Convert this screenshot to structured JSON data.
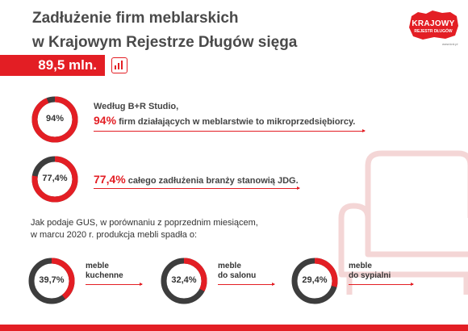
{
  "header": {
    "title_line1": "Zadłużenie firm meblarskich",
    "title_line2": "w Krajowym Rejestrze Długów sięga",
    "amount": "89,5 mln."
  },
  "logo": {
    "line1": "KRAJOWY",
    "line2": "REJESTR DŁUGÓW",
    "url": "www.krd.pl"
  },
  "facts": [
    {
      "donut_label": "94%",
      "fraction": 0.94,
      "line1": "Według B+R Studio,",
      "highlight": "94%",
      "line2_rest": " firm działających w meblarstwie to mikroprzedsiębiorcy."
    },
    {
      "donut_label": "77,4%",
      "fraction": 0.774,
      "highlight": "77,4%",
      "line1_rest": " całego zadłużenia branży stanowią JDG."
    }
  ],
  "gus": {
    "intro_line1": "Jak podaje GUS, w porównaniu z poprzednim miesiącem,",
    "intro_line2": "w marcu 2020 r. produkcja mebli spadła o:",
    "items": [
      {
        "donut_label": "39,7%",
        "fraction": 0.397,
        "label_line1": "meble",
        "label_line2": "kuchenne"
      },
      {
        "donut_label": "32,4%",
        "fraction": 0.324,
        "label_line1": "meble",
        "label_line2": "do salonu"
      },
      {
        "donut_label": "29,4%",
        "fraction": 0.294,
        "label_line1": "meble",
        "label_line2": "do sypialni"
      }
    ]
  },
  "colors": {
    "accent": "#e31e24",
    "dark": "#3d3d3d",
    "light": "#f4d6d6"
  }
}
